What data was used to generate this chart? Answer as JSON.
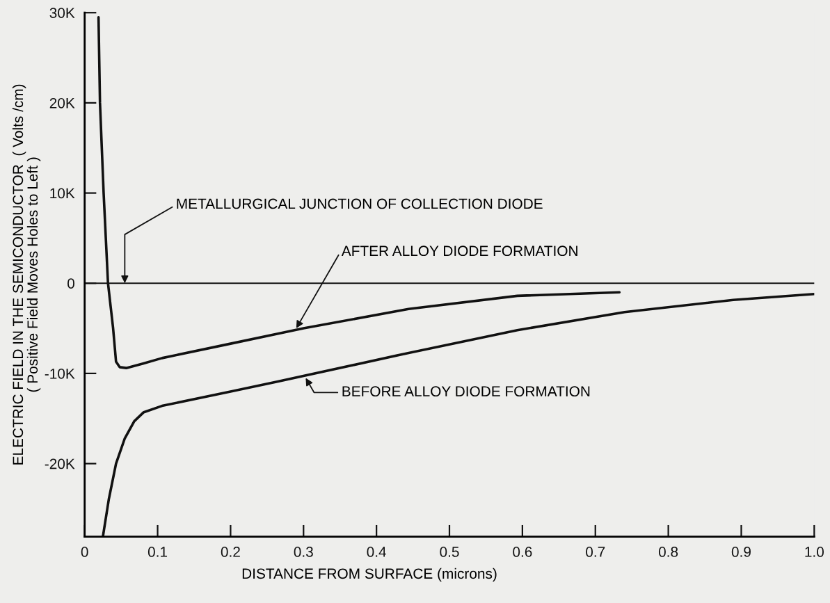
{
  "chart_data": {
    "type": "line",
    "xlabel": "DISTANCE FROM SURFACE (microns)",
    "ylabel": "ELECTRIC FIELD IN THE SEMICONDUCTOR  ( Volts /cm)\n( Positive Field Moves Holes to Left )",
    "xlim": [
      0,
      1.0
    ],
    "ylim": [
      -28100,
      30000
    ],
    "xticks": [
      0,
      0.1,
      0.2,
      0.3,
      0.4,
      0.5,
      0.6,
      0.7,
      0.8,
      0.9,
      {
        "value": 1.0,
        "label": "1.0"
      }
    ],
    "yticks": [
      {
        "value": -20000,
        "label": "-20K"
      },
      {
        "value": -10000,
        "label": "-10K"
      },
      0,
      {
        "value": 10000,
        "label": "10K"
      },
      {
        "value": 20000,
        "label": "20K"
      },
      {
        "value": 30000,
        "label": "30K"
      }
    ],
    "grid": false,
    "legend": false,
    "marker": "none",
    "line_style": "solid",
    "series": [
      {
        "color": "#111111",
        "x": [
          0.019,
          0.021,
          0.026,
          0.032,
          0.039,
          0.043,
          0.048,
          0.057,
          0.08,
          0.106,
          0.2,
          0.265,
          0.3,
          0.444,
          0.593,
          0.733
        ],
        "values": [
          29500,
          20000,
          10000,
          0,
          -5000,
          -8700,
          -9300,
          -9400,
          -8900,
          -8300,
          -6700,
          -5600,
          -5000,
          -2850,
          -1400,
          -1000
        ]
      },
      {
        "color": "#111111",
        "x": [
          0.025,
          0.033,
          0.043,
          0.055,
          0.068,
          0.081,
          0.106,
          0.201,
          0.265,
          0.434,
          0.593,
          0.74,
          0.889,
          1.0
        ],
        "values": [
          -28100,
          -24000,
          -20000,
          -17200,
          -15300,
          -14300,
          -13600,
          -12000,
          -10900,
          -7900,
          -5200,
          -3200,
          -1850,
          -1200
        ]
      }
    ],
    "ref_lines": [
      {
        "axis": "y",
        "value": 0,
        "color": "#111111"
      }
    ],
    "annotations": [
      {
        "text": "METALLURGICAL JUNCTION OF COLLECTION DIODE",
        "x": 0.055,
        "y": 0
      },
      {
        "text": "AFTER ALLOY DIODE FORMATION",
        "x": 0.29,
        "y": -5000
      },
      {
        "text": "BEFORE ALLOY DIODE FORMATION",
        "x": 0.303,
        "y": -10500
      }
    ]
  }
}
